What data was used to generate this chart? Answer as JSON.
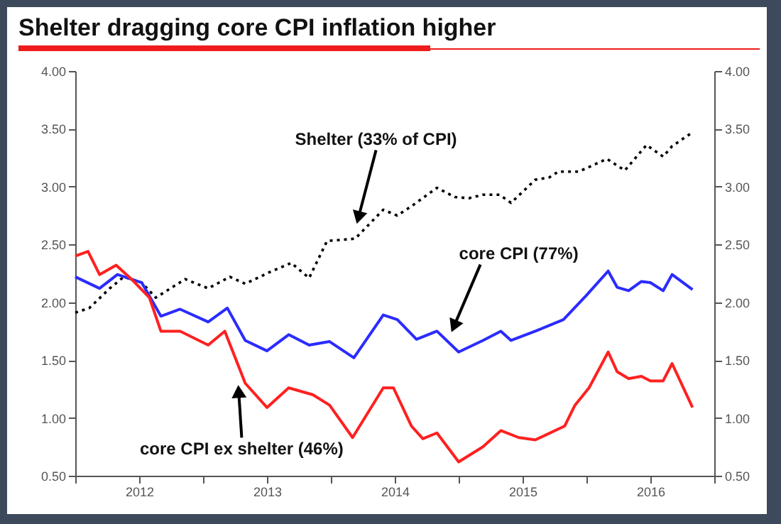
{
  "chart_data": {
    "type": "line",
    "title": "Shelter dragging core CPI inflation higher",
    "xlim": [
      2012,
      2017
    ],
    "xticks": [
      {
        "value": 2012,
        "label": null
      },
      {
        "value": 2012.5,
        "label": "2012"
      },
      {
        "value": 2013,
        "label": null
      },
      {
        "value": 2013.5,
        "label": "2013"
      },
      {
        "value": 2014,
        "label": null
      },
      {
        "value": 2014.5,
        "label": "2014"
      },
      {
        "value": 2015,
        "label": null
      },
      {
        "value": 2015.5,
        "label": "2015"
      },
      {
        "value": 2016,
        "label": null
      },
      {
        "value": 2016.5,
        "label": "2016"
      },
      {
        "value": 2017,
        "label": null
      }
    ],
    "ylim": [
      0.5,
      4
    ],
    "yticks": [
      {
        "value": 0.5,
        "label": "0.50"
      },
      {
        "value": 1,
        "label": "1.00"
      },
      {
        "value": 1.5,
        "label": "1.50"
      },
      {
        "value": 2,
        "label": "2.00"
      },
      {
        "value": 2.5,
        "label": "2.50"
      },
      {
        "value": 3,
        "label": "3.00"
      },
      {
        "value": 3.5,
        "label": "3.50"
      },
      {
        "value": 4,
        "label": "4.00"
      }
    ],
    "y2lim": [
      0.5,
      4
    ],
    "y2ticks": [
      {
        "value": 0.5,
        "label": "0.50"
      },
      {
        "value": 1,
        "label": "1.00"
      },
      {
        "value": 1.5,
        "label": "1.50"
      },
      {
        "value": 2,
        "label": "2.00"
      },
      {
        "value": 2.5,
        "label": "2.50"
      },
      {
        "value": 3,
        "label": "3.00"
      },
      {
        "value": 3.5,
        "label": "3.50"
      },
      {
        "value": 4,
        "label": "4.00"
      }
    ],
    "series": [
      {
        "color": "#000000",
        "line_style": "dotted",
        "x": [
          2012.0,
          2012.11,
          2012.27,
          2012.38,
          2012.52,
          2012.63,
          2012.86,
          2013.04,
          2013.21,
          2013.33,
          2013.52,
          2013.69,
          2013.83,
          2013.97,
          2014.19,
          2014.41,
          2014.52,
          2014.63,
          2014.83,
          2014.97,
          2015.08,
          2015.19,
          2015.32,
          2015.41,
          2015.6,
          2015.71,
          2015.78,
          2015.94,
          2016.16,
          2016.3,
          2016.47,
          2016.6,
          2016.67,
          2016.83
        ],
        "values": [
          1.91,
          1.95,
          2.12,
          2.22,
          2.17,
          2.04,
          2.2,
          2.12,
          2.22,
          2.16,
          2.26,
          2.34,
          2.21,
          2.53,
          2.55,
          2.8,
          2.75,
          2.83,
          2.99,
          2.91,
          2.9,
          2.93,
          2.93,
          2.86,
          3.06,
          3.08,
          3.13,
          3.13,
          3.24,
          3.14,
          3.36,
          3.26,
          3.35,
          3.47
        ]
      },
      {
        "color": "#2b2bff",
        "x": [
          2012.0,
          2012.19,
          2012.33,
          2012.52,
          2012.67,
          2012.82,
          2013.04,
          2013.19,
          2013.33,
          2013.5,
          2013.67,
          2013.83,
          2013.99,
          2014.18,
          2014.41,
          2014.52,
          2014.67,
          2014.83,
          2015.0,
          2015.19,
          2015.33,
          2015.41,
          2015.6,
          2015.82,
          2016.0,
          2016.17,
          2016.24,
          2016.33,
          2016.43,
          2016.5,
          2016.6,
          2016.67,
          2016.83
        ],
        "values": [
          2.22,
          2.12,
          2.24,
          2.17,
          1.88,
          1.94,
          1.83,
          1.95,
          1.67,
          1.58,
          1.72,
          1.63,
          1.66,
          1.52,
          1.89,
          1.85,
          1.68,
          1.75,
          1.57,
          1.67,
          1.75,
          1.67,
          1.75,
          1.85,
          2.06,
          2.27,
          2.13,
          2.1,
          2.18,
          2.17,
          2.1,
          2.24,
          2.11
        ]
      },
      {
        "color": "#ff2020",
        "x": [
          2012.0,
          2012.1,
          2012.19,
          2012.32,
          2012.44,
          2012.58,
          2012.67,
          2012.82,
          2013.04,
          2013.17,
          2013.33,
          2013.5,
          2013.67,
          2013.86,
          2013.99,
          2014.17,
          2014.41,
          2014.49,
          2014.63,
          2014.72,
          2014.83,
          2015.0,
          2015.19,
          2015.33,
          2015.47,
          2015.6,
          2015.83,
          2015.91,
          2016.02,
          2016.17,
          2016.24,
          2016.33,
          2016.43,
          2016.5,
          2016.6,
          2016.67,
          2016.83
        ],
        "values": [
          2.4,
          2.44,
          2.24,
          2.32,
          2.2,
          2.04,
          1.75,
          1.75,
          1.63,
          1.75,
          1.3,
          1.09,
          1.26,
          1.2,
          1.11,
          0.83,
          1.26,
          1.26,
          0.93,
          0.82,
          0.87,
          0.62,
          0.75,
          0.89,
          0.83,
          0.81,
          0.93,
          1.11,
          1.26,
          1.57,
          1.4,
          1.34,
          1.36,
          1.32,
          1.32,
          1.47,
          1.09
        ]
      }
    ],
    "annotations": [
      {
        "text": "Shelter (33% of CPI)",
        "x": 2014.22,
        "y": 2.75
      },
      {
        "text": "core CPI (77%)",
        "x": 2014.97,
        "y": 1.81
      },
      {
        "text": "core CPI ex shelter (46%)",
        "x": 2013.28,
        "y": 1.21
      }
    ]
  }
}
